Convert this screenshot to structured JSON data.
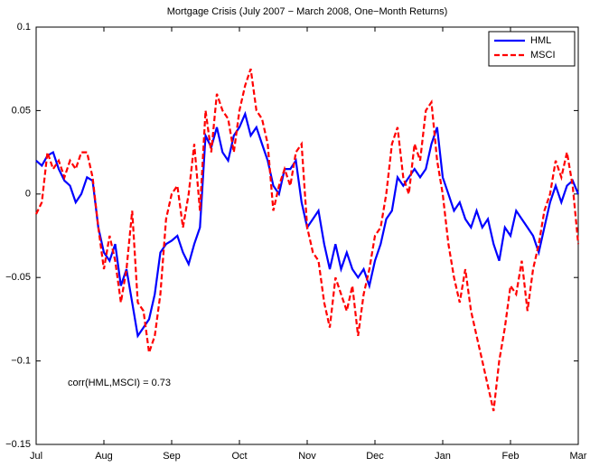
{
  "chart_data": {
    "type": "line",
    "title": "Mortgage Crisis (July 2007 − March 2008, One−Month Returns)",
    "annotation": "corr(HML,MSCI) = 0.73",
    "categories": [
      "Jul",
      null,
      null,
      null,
      null,
      null,
      null,
      null,
      null,
      null,
      null,
      null,
      "Aug",
      null,
      null,
      null,
      null,
      null,
      null,
      null,
      null,
      null,
      null,
      null,
      "Sep",
      null,
      null,
      null,
      null,
      null,
      null,
      null,
      null,
      null,
      null,
      null,
      "Oct",
      null,
      null,
      null,
      null,
      null,
      null,
      null,
      null,
      null,
      null,
      null,
      "Nov",
      null,
      null,
      null,
      null,
      null,
      null,
      null,
      null,
      null,
      null,
      null,
      "Dec",
      null,
      null,
      null,
      null,
      null,
      null,
      null,
      null,
      null,
      null,
      null,
      "Jan",
      null,
      null,
      null,
      null,
      null,
      null,
      null,
      null,
      null,
      null,
      null,
      "Feb",
      null,
      null,
      null,
      null,
      null,
      null,
      null,
      null,
      null,
      null,
      null,
      "Mar"
    ],
    "series": [
      {
        "name": "HML",
        "color": "#0000ff",
        "dash": false,
        "values": [
          0.02,
          0.017,
          0.023,
          0.025,
          0.015,
          0.008,
          0.005,
          -0.005,
          0.0,
          0.01,
          0.008,
          -0.02,
          -0.035,
          -0.04,
          -0.03,
          -0.055,
          -0.045,
          -0.065,
          -0.085,
          -0.08,
          -0.075,
          -0.06,
          -0.035,
          -0.03,
          -0.028,
          -0.025,
          -0.035,
          -0.042,
          -0.03,
          -0.02,
          0.035,
          0.028,
          0.04,
          0.025,
          0.02,
          0.035,
          0.04,
          0.048,
          0.035,
          0.04,
          0.03,
          0.02,
          0.005,
          0.0,
          0.015,
          0.015,
          0.02,
          -0.005,
          -0.02,
          -0.015,
          -0.01,
          -0.03,
          -0.045,
          -0.03,
          -0.045,
          -0.035,
          -0.045,
          -0.05,
          -0.045,
          -0.055,
          -0.04,
          -0.03,
          -0.015,
          -0.01,
          0.01,
          0.005,
          0.01,
          0.015,
          0.01,
          0.015,
          0.03,
          0.04,
          0.01,
          0.0,
          -0.01,
          -0.005,
          -0.015,
          -0.02,
          -0.01,
          -0.02,
          -0.015,
          -0.03,
          -0.04,
          -0.02,
          -0.025,
          -0.01,
          -0.015,
          -0.02,
          -0.025,
          -0.035,
          -0.02,
          -0.005,
          0.005,
          -0.005,
          0.005,
          0.008,
          0.0
        ]
      },
      {
        "name": "MSCI",
        "color": "#ff0000",
        "dash": true,
        "values": [
          -0.012,
          -0.005,
          0.025,
          0.015,
          0.02,
          0.01,
          0.02,
          0.015,
          0.025,
          0.025,
          0.01,
          -0.02,
          -0.045,
          -0.025,
          -0.04,
          -0.065,
          -0.045,
          -0.01,
          -0.065,
          -0.07,
          -0.095,
          -0.085,
          -0.06,
          -0.015,
          0.0,
          0.005,
          -0.02,
          0.0,
          0.03,
          -0.01,
          0.05,
          0.025,
          0.06,
          0.05,
          0.045,
          0.025,
          0.05,
          0.065,
          0.075,
          0.05,
          0.045,
          0.03,
          -0.01,
          0.005,
          0.015,
          0.005,
          0.025,
          0.03,
          -0.02,
          -0.035,
          -0.04,
          -0.065,
          -0.08,
          -0.05,
          -0.06,
          -0.07,
          -0.055,
          -0.085,
          -0.06,
          -0.045,
          -0.025,
          -0.02,
          0.0,
          0.03,
          0.04,
          0.01,
          0.0,
          0.03,
          0.02,
          0.05,
          0.055,
          0.02,
          0.0,
          -0.03,
          -0.05,
          -0.065,
          -0.045,
          -0.07,
          -0.085,
          -0.1,
          -0.115,
          -0.13,
          -0.1,
          -0.08,
          -0.055,
          -0.06,
          -0.04,
          -0.07,
          -0.045,
          -0.03,
          -0.01,
          0.0,
          0.02,
          0.01,
          0.025,
          0.005,
          -0.03
        ]
      }
    ],
    "ylim": [
      -0.15,
      0.1
    ],
    "yticks": [
      {
        "value": -0.15,
        "label": "−0.15"
      },
      {
        "value": -0.1,
        "label": "−0.1"
      },
      {
        "value": -0.05,
        "label": "−0.05"
      },
      0,
      0.05,
      0.1
    ],
    "grid": false,
    "legend": "northeast"
  }
}
